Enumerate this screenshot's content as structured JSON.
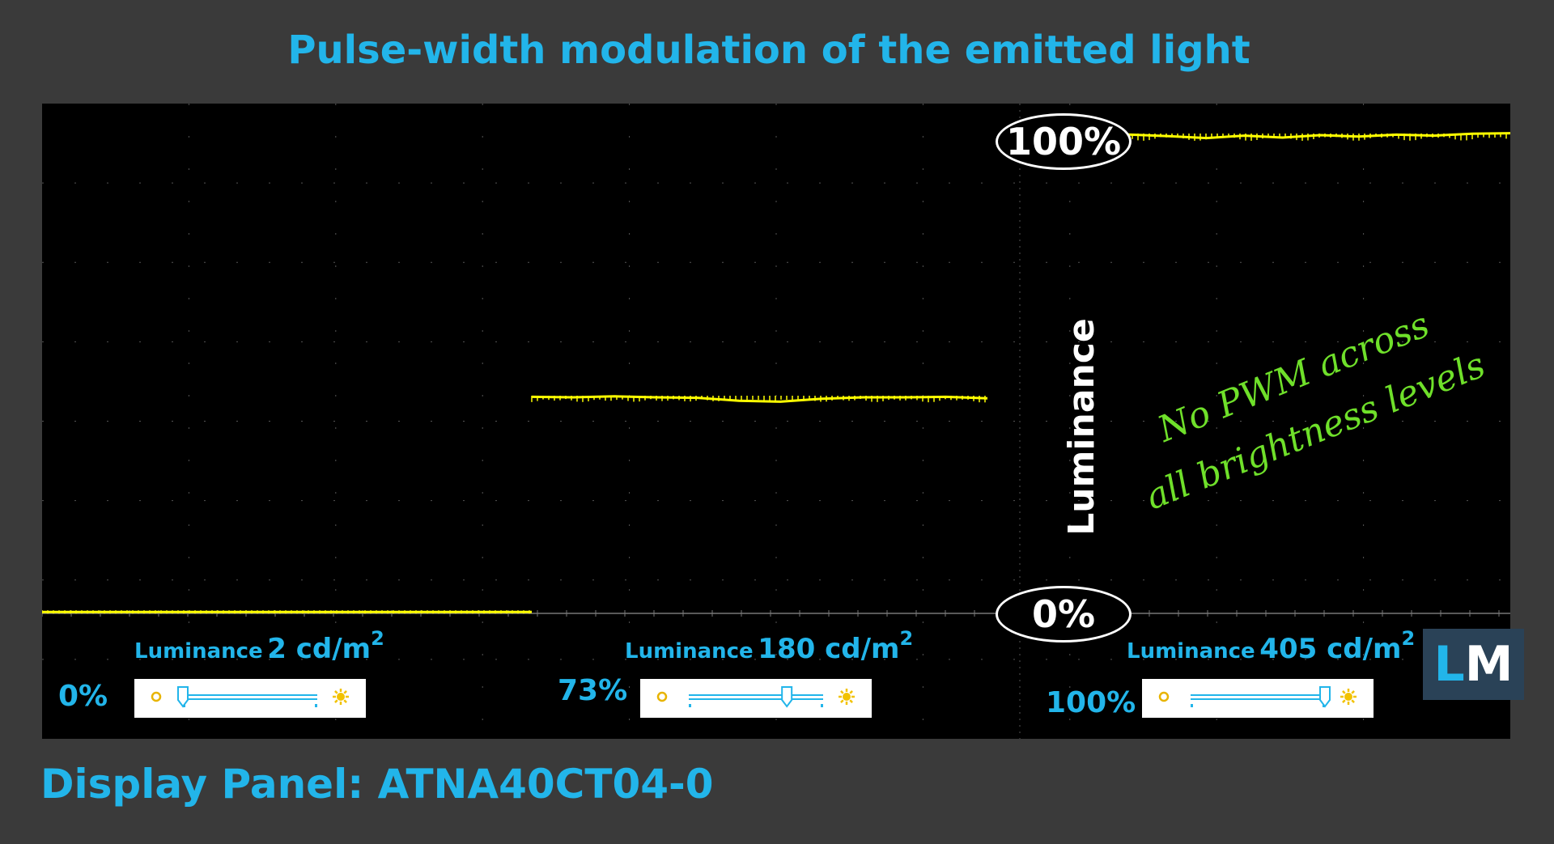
{
  "title": "Pulse-width modulation of the emitted light",
  "footer": "Display Panel: ATNA40CT04-0",
  "axis": {
    "y_label": "Luminance",
    "top_marker": "100%",
    "bottom_marker": "0%"
  },
  "annotation": {
    "line1": "No PWM across",
    "line2": "all brightness levels"
  },
  "logo": "LM",
  "panels": [
    {
      "brightness": "0%",
      "luminance_word": "Luminance",
      "luminance_value": "2 cd/m",
      "exponent": "2",
      "slider_level": 0.0
    },
    {
      "brightness": "73%",
      "luminance_word": "Luminance",
      "luminance_value": "180 cd/m",
      "exponent": "2",
      "slider_level": 0.73
    },
    {
      "brightness": "100%",
      "luminance_word": "Luminance",
      "luminance_value": "405 cd/m",
      "exponent": "2",
      "slider_level": 1.0
    }
  ],
  "colors": {
    "accent": "#22b5ea",
    "trace": "#ffff00",
    "note": "#6fe02a",
    "background": "#3a3a3a",
    "scope": "#000000"
  },
  "chart_data": {
    "type": "line",
    "title": "Pulse-width modulation of the emitted light",
    "ylabel": "Luminance",
    "ylim": [
      0,
      100
    ],
    "grid": true,
    "series": [
      {
        "brightness": "0%",
        "level": 0.3,
        "values": [
          0.3,
          0.3,
          0.3,
          0.3,
          0.3,
          0.3,
          0.3,
          0.3,
          0.3,
          0.3,
          0.3,
          0.3
        ]
      },
      {
        "brightness": "73%",
        "level": 44.5,
        "values": [
          44.6,
          44.5,
          44.7,
          44.5,
          44.4,
          43.8,
          43.6,
          44.2,
          44.5,
          44.5,
          44.6,
          44.3
        ]
      },
      {
        "brightness": "100%",
        "level": 98.5,
        "values": [
          98.7,
          98.6,
          98.3,
          97.9,
          98.4,
          98.0,
          98.5,
          98.2,
          98.6,
          98.4,
          98.8,
          98.9
        ]
      }
    ]
  }
}
